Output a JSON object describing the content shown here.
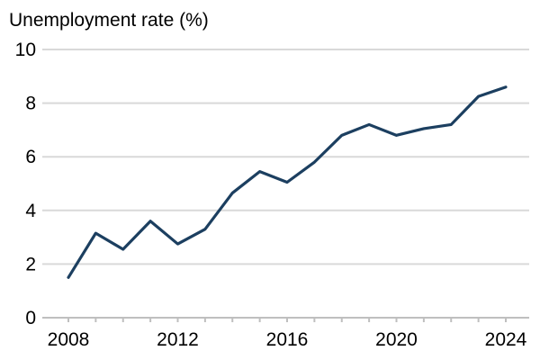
{
  "chart_data": {
    "type": "line",
    "ylabel": "Unemployment rate (%)",
    "xlabel": "",
    "ylim": [
      0,
      10
    ],
    "yticks": [
      0,
      2,
      4,
      6,
      8,
      10
    ],
    "xlim": [
      2008,
      2024
    ],
    "xticks": [
      2008,
      2012,
      2016,
      2020,
      2024
    ],
    "grid": true,
    "series_color": "#1c3f60",
    "x": [
      2008,
      2009,
      2010,
      2011,
      2012,
      2013,
      2014,
      2015,
      2016,
      2017,
      2018,
      2019,
      2020,
      2021,
      2022,
      2023,
      2024
    ],
    "series": [
      {
        "values": [
          1.5,
          3.15,
          2.55,
          3.6,
          2.75,
          3.3,
          4.65,
          5.45,
          5.05,
          5.8,
          6.8,
          7.2,
          6.8,
          7.05,
          7.2,
          8.25,
          8.6
        ]
      }
    ]
  }
}
